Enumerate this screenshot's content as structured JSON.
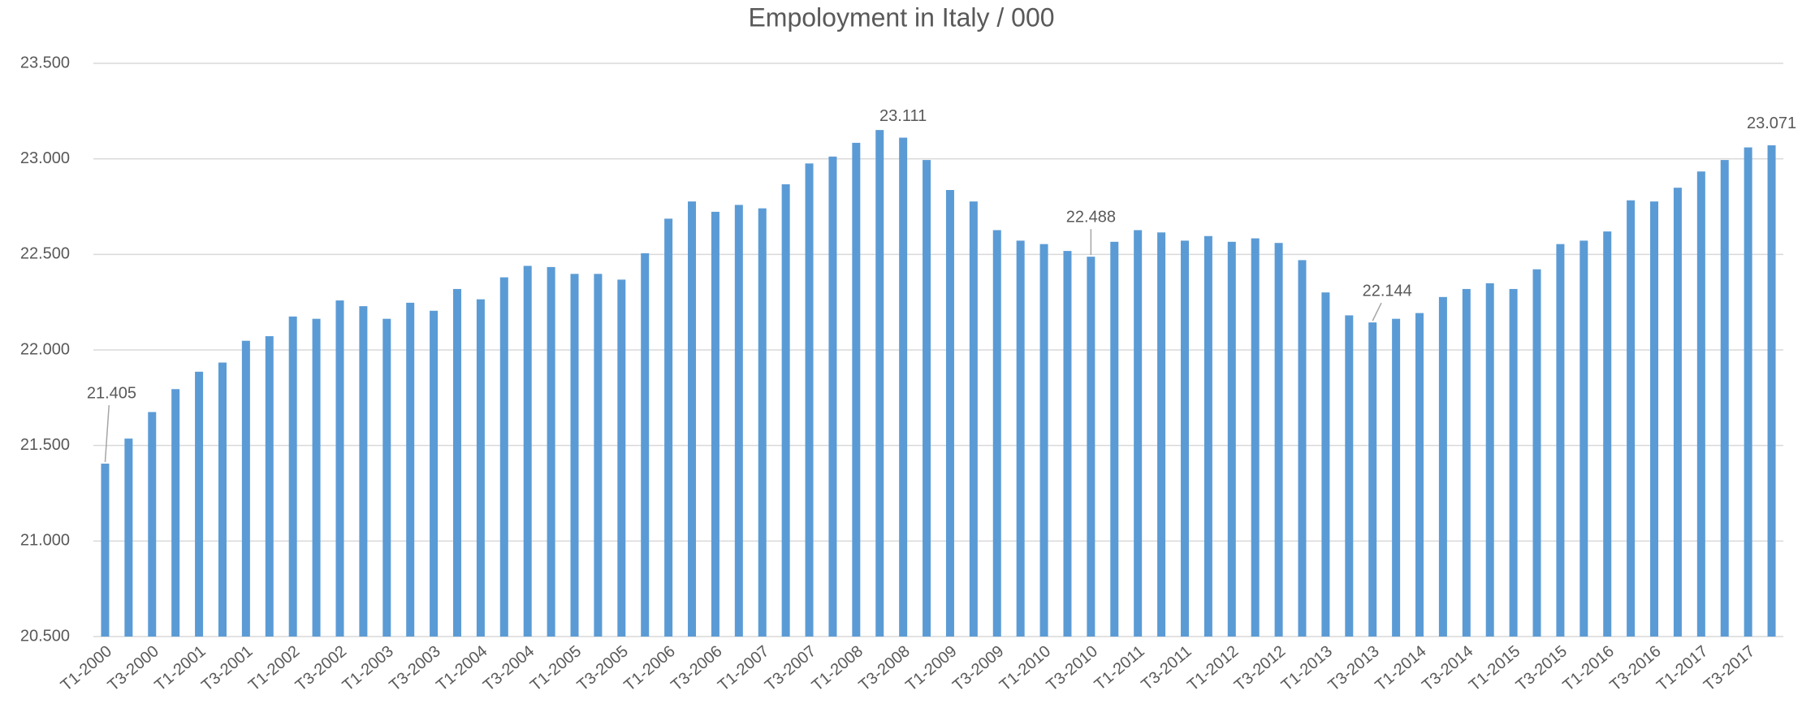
{
  "chart_data": {
    "type": "bar",
    "title": "Empoloyment in Italy / 000",
    "categories": [
      "T1-2000",
      null,
      "T3-2000",
      null,
      "T1-2001",
      null,
      "T3-2001",
      null,
      "T1-2002",
      null,
      "T3-2002",
      null,
      "T1-2003",
      null,
      "T3-2003",
      null,
      "T1-2004",
      null,
      "T3-2004",
      null,
      "T1-2005",
      null,
      "T3-2005",
      null,
      "T1-2006",
      null,
      "T3-2006",
      null,
      "T1-2007",
      null,
      "T3-2007",
      null,
      "T1-2008",
      null,
      "T3-2008",
      null,
      "T1-2009",
      null,
      "T3-2009",
      null,
      "T1-2010",
      null,
      "T3-2010",
      null,
      "T1-2011",
      null,
      "T3-2011",
      null,
      "T1-2012",
      null,
      "T3-2012",
      null,
      "T1-2013",
      null,
      "T3-2013",
      null,
      "T1-2014",
      null,
      "T3-2014",
      null,
      "T1-2015",
      null,
      "T3-2015",
      null,
      "T1-2016",
      null,
      "T3-2016",
      null,
      "T1-2017",
      null,
      "T3-2017",
      null
    ],
    "values": [
      21405,
      21536,
      21675,
      21795,
      21886,
      21934,
      22048,
      22072,
      22175,
      22163,
      22259,
      22229,
      22163,
      22247,
      22205,
      22319,
      22265,
      22380,
      22440,
      22434,
      22398,
      22398,
      22368,
      22506,
      22687,
      22777,
      22723,
      22759,
      22741,
      22867,
      22976,
      23012,
      23084,
      23151,
      23111,
      22994,
      22837,
      22777,
      22627,
      22572,
      22554,
      22518,
      22488,
      22566,
      22627,
      22615,
      22572,
      22596,
      22566,
      22584,
      22560,
      22470,
      22301,
      22181,
      22144,
      22163,
      22193,
      22277,
      22319,
      22349,
      22319,
      22422,
      22554,
      22572,
      22620,
      22783,
      22777,
      22849,
      22934,
      22994,
      23060,
      23071
    ],
    "value_labels": [
      "21.405",
      null,
      null,
      null,
      null,
      null,
      null,
      null,
      null,
      null,
      null,
      null,
      null,
      null,
      null,
      null,
      null,
      null,
      null,
      null,
      null,
      null,
      null,
      null,
      null,
      null,
      null,
      null,
      null,
      null,
      null,
      null,
      null,
      null,
      "23.111",
      null,
      null,
      null,
      null,
      null,
      null,
      null,
      "22.488",
      null,
      null,
      null,
      null,
      null,
      null,
      null,
      null,
      null,
      null,
      null,
      "22.144",
      null,
      null,
      null,
      null,
      null,
      null,
      null,
      null,
      null,
      null,
      null,
      null,
      null,
      null,
      null,
      null,
      "23.071"
    ],
    "color": "#5b9bd5",
    "ylim": [
      20500,
      23500
    ],
    "yticks": [
      {
        "value": 20500,
        "label": "20.500"
      },
      {
        "value": 21000,
        "label": "21.000"
      },
      {
        "value": 21500,
        "label": "21.500"
      },
      {
        "value": 22000,
        "label": "22.000"
      },
      {
        "value": 22500,
        "label": "22.500"
      },
      {
        "value": 23000,
        "label": "23.000"
      },
      {
        "value": 23500,
        "label": "23.500"
      }
    ],
    "grid": true
  }
}
